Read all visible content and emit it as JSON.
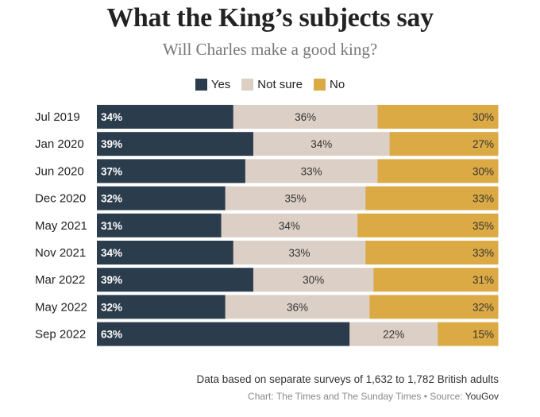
{
  "chart_data": {
    "type": "bar",
    "orientation": "horizontal",
    "stacked": true,
    "title": "What the King’s subjects say",
    "subtitle": "Will Charles make a good king?",
    "categories": [
      "Jul 2019",
      "Jan 2020",
      "Jun 2020",
      "Dec 2020",
      "May 2021",
      "Nov 2021",
      "Mar 2022",
      "May 2022",
      "Sep 2022"
    ],
    "series": [
      {
        "name": "Yes",
        "color": "#2b3c4c",
        "values": [
          34,
          39,
          37,
          32,
          31,
          34,
          39,
          32,
          63
        ]
      },
      {
        "name": "Not sure",
        "color": "#dccfc5",
        "values": [
          36,
          34,
          33,
          35,
          34,
          33,
          30,
          36,
          22
        ]
      },
      {
        "name": "No",
        "color": "#dcaa44",
        "values": [
          30,
          27,
          30,
          33,
          35,
          33,
          31,
          32,
          15
        ]
      }
    ],
    "value_suffix": "%",
    "xlim": [
      0,
      100
    ],
    "legend_position": "top-center",
    "grid": false
  },
  "footer": {
    "note": "Data based on separate surveys of 1,632 to 1,782 British adults",
    "credit_prefix": "Chart: The Times and The Sunday Times • Source:",
    "credit_source": "YouGov"
  }
}
